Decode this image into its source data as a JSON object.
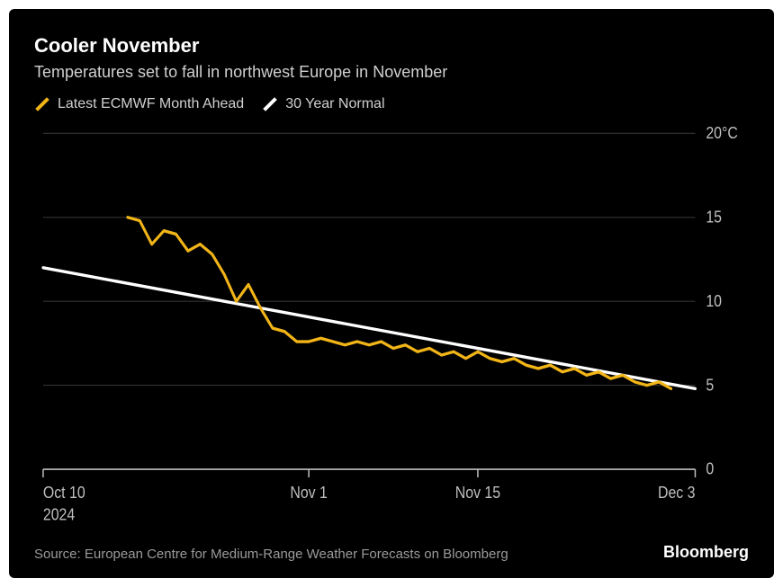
{
  "card": {
    "bg": "#000000",
    "title": "Cooler November",
    "subtitle": "Temperatures set to fall in northwest Europe in November",
    "source": "Source: European Centre for Medium-Range Weather Forecasts on Bloomberg",
    "brand": "Bloomberg"
  },
  "legend": {
    "series1": {
      "label": "Latest ECMWF Month Ahead",
      "color": "#f2b518"
    },
    "series2": {
      "label": "30 Year Normal",
      "color": "#ffffff"
    }
  },
  "chart": {
    "type": "line",
    "background": "#000000",
    "axis_color": "#bfbfbf",
    "grid_color": "#333333",
    "text_color": "#bfbfbf",
    "label_fontsize": 16,
    "y": {
      "unit_suffix_on_top": "°C",
      "min": 0,
      "max": 20,
      "ticks": [
        0,
        5,
        10,
        15,
        20
      ]
    },
    "x": {
      "min": 0,
      "max": 54,
      "ticks": [
        {
          "pos": 0,
          "label": "Oct 10",
          "sub": "2024"
        },
        {
          "pos": 22,
          "label": "Nov 1",
          "sub": ""
        },
        {
          "pos": 36,
          "label": "Nov 15",
          "sub": ""
        },
        {
          "pos": 54,
          "label": "Dec 3",
          "sub": ""
        }
      ]
    },
    "series": [
      {
        "name": "30 Year Normal",
        "color": "#ffffff",
        "width": 3,
        "points": [
          {
            "x": 0,
            "y": 12.0
          },
          {
            "x": 54,
            "y": 4.8
          }
        ]
      },
      {
        "name": "Latest ECMWF Month Ahead",
        "color": "#f2b518",
        "width": 3,
        "points": [
          {
            "x": 7,
            "y": 15.0
          },
          {
            "x": 8,
            "y": 14.8
          },
          {
            "x": 9,
            "y": 13.4
          },
          {
            "x": 10,
            "y": 14.2
          },
          {
            "x": 11,
            "y": 14.0
          },
          {
            "x": 12,
            "y": 13.0
          },
          {
            "x": 13,
            "y": 13.4
          },
          {
            "x": 14,
            "y": 12.8
          },
          {
            "x": 15,
            "y": 11.6
          },
          {
            "x": 16,
            "y": 10.0
          },
          {
            "x": 17,
            "y": 11.0
          },
          {
            "x": 18,
            "y": 9.6
          },
          {
            "x": 19,
            "y": 8.4
          },
          {
            "x": 20,
            "y": 8.2
          },
          {
            "x": 21,
            "y": 7.6
          },
          {
            "x": 22,
            "y": 7.6
          },
          {
            "x": 23,
            "y": 7.8
          },
          {
            "x": 24,
            "y": 7.6
          },
          {
            "x": 25,
            "y": 7.4
          },
          {
            "x": 26,
            "y": 7.6
          },
          {
            "x": 27,
            "y": 7.4
          },
          {
            "x": 28,
            "y": 7.6
          },
          {
            "x": 29,
            "y": 7.2
          },
          {
            "x": 30,
            "y": 7.4
          },
          {
            "x": 31,
            "y": 7.0
          },
          {
            "x": 32,
            "y": 7.2
          },
          {
            "x": 33,
            "y": 6.8
          },
          {
            "x": 34,
            "y": 7.0
          },
          {
            "x": 35,
            "y": 6.6
          },
          {
            "x": 36,
            "y": 7.0
          },
          {
            "x": 37,
            "y": 6.6
          },
          {
            "x": 38,
            "y": 6.4
          },
          {
            "x": 39,
            "y": 6.6
          },
          {
            "x": 40,
            "y": 6.2
          },
          {
            "x": 41,
            "y": 6.0
          },
          {
            "x": 42,
            "y": 6.2
          },
          {
            "x": 43,
            "y": 5.8
          },
          {
            "x": 44,
            "y": 6.0
          },
          {
            "x": 45,
            "y": 5.6
          },
          {
            "x": 46,
            "y": 5.8
          },
          {
            "x": 47,
            "y": 5.4
          },
          {
            "x": 48,
            "y": 5.6
          },
          {
            "x": 49,
            "y": 5.2
          },
          {
            "x": 50,
            "y": 5.0
          },
          {
            "x": 51,
            "y": 5.2
          },
          {
            "x": 52,
            "y": 4.8
          }
        ]
      }
    ]
  }
}
